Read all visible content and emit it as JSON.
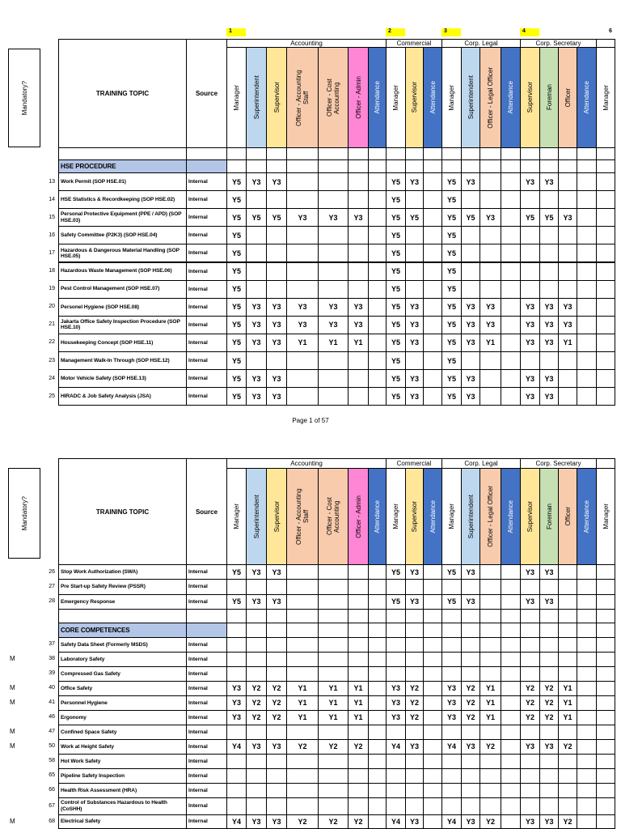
{
  "mandatory_header": "Mandatory?",
  "topic_header": "TRAINING TOPIC",
  "source_header": "Source",
  "groups": [
    {
      "number": "1",
      "name": "Accounting"
    },
    {
      "number": "2",
      "name": "Commercial"
    },
    {
      "number": "3",
      "name": "Corp. Legal"
    },
    {
      "number": "4",
      "name": "Corp. Secretary"
    },
    {
      "number": "6"
    }
  ],
  "columns": [
    "Manager",
    "Superintendent",
    "Supervisor",
    "Officer - Accounting Staff",
    "Officer - Cost Accounting",
    "Officer - Admin",
    "Attendance",
    "Manager",
    "Supervisor",
    "Attendance",
    "Manager",
    "Superintendent",
    "Officer - Legal Officer",
    "Attendance",
    "Supervisor",
    "Foreman",
    "Officer",
    "Attendance",
    "Manager"
  ],
  "pages": [
    {
      "page_label": "Page 1 of 57",
      "rows": [
        {
          "section": "HSE PROCEDURE"
        },
        {
          "no": "13",
          "topic": "Work Permit (SOP HSE.01)",
          "source": "Internal",
          "cells": [
            "Y5",
            "Y3",
            "Y3",
            null,
            null,
            null,
            null,
            "Y5",
            "Y3",
            null,
            "Y5",
            "Y3",
            null,
            null,
            "Y3",
            "Y3",
            null,
            null,
            null
          ]
        },
        {
          "no": "14",
          "topic": "HSE Statistics & Recordkeeping (SOP HSE.02)",
          "source": "Internal",
          "cells": [
            "Y5",
            null,
            null,
            null,
            null,
            null,
            null,
            "Y5",
            null,
            null,
            "Y5",
            null,
            null,
            null,
            null,
            null,
            null,
            null,
            null
          ]
        },
        {
          "no": "15",
          "topic": "Personal Protective Equipment (PPE / APD) (SOP HSE.03)",
          "source": "Internal",
          "cells": [
            "Y5",
            "Y5",
            "Y5",
            "Y3",
            "Y3",
            "Y3",
            null,
            "Y5",
            "Y5",
            null,
            "Y5",
            "Y5",
            "Y3",
            null,
            "Y5",
            "Y5",
            "Y3",
            null,
            null
          ]
        },
        {
          "no": "16",
          "topic": "Safety Committee (P2K3) (SOP HSE.04)",
          "source": "Internal",
          "cells": [
            "Y5",
            null,
            null,
            null,
            null,
            null,
            null,
            "Y5",
            null,
            null,
            "Y5",
            null,
            null,
            null,
            null,
            null,
            null,
            null,
            null
          ]
        },
        {
          "no": "17",
          "topic": "Hazardous & Dangerous Material Handling (SOP HSE.05)",
          "source": "Internal",
          "cells": [
            "Y5",
            null,
            null,
            null,
            null,
            null,
            null,
            "Y5",
            null,
            null,
            "Y5",
            null,
            null,
            null,
            null,
            null,
            null,
            null,
            null
          ]
        },
        {
          "no": "18",
          "topic": "Hazardous Waste Management (SOP HSE.06)",
          "source": "Internal",
          "cells": [
            "Y5",
            null,
            null,
            null,
            null,
            null,
            null,
            "Y5",
            null,
            null,
            "Y5",
            null,
            null,
            null,
            null,
            null,
            null,
            null,
            null
          ]
        },
        {
          "no": "19",
          "topic": "Pest Control Management (SOP HSE.07)",
          "source": "Internal",
          "cells": [
            "Y5",
            null,
            null,
            null,
            null,
            null,
            null,
            "Y5",
            null,
            null,
            "Y5",
            null,
            null,
            null,
            null,
            null,
            null,
            null,
            null
          ]
        },
        {
          "no": "20",
          "topic": "Personel Hygiene (SOP HSE.08)",
          "source": "Internal",
          "cells": [
            "Y5",
            "Y3",
            "Y3",
            "Y3",
            "Y3",
            "Y3",
            null,
            "Y5",
            "Y3",
            null,
            "Y5",
            "Y3",
            "Y3",
            null,
            "Y3",
            "Y3",
            "Y3",
            null,
            null
          ]
        },
        {
          "no": "21",
          "topic": "Jakarta Office Safety Inspection Procedure (SOP HSE.10)",
          "source": "Internal",
          "cells": [
            "Y5",
            "Y3",
            "Y3",
            "Y3",
            "Y3",
            "Y3",
            null,
            "Y5",
            "Y3",
            null,
            "Y5",
            "Y3",
            "Y3",
            null,
            "Y3",
            "Y3",
            "Y3",
            null,
            null
          ]
        },
        {
          "no": "22",
          "topic": "Housekeeping Concept (SOP HSE.11)",
          "source": "Internal",
          "cells": [
            "Y5",
            "Y3",
            "Y3",
            "Y1",
            "Y1",
            "Y1",
            null,
            "Y5",
            "Y3",
            null,
            "Y5",
            "Y3",
            "Y1",
            null,
            "Y3",
            "Y3",
            "Y1",
            null,
            null
          ]
        },
        {
          "no": "23",
          "topic": "Management Walk-In Through (SOP HSE.12)",
          "source": "Internal",
          "cells": [
            "Y5",
            null,
            null,
            null,
            null,
            null,
            null,
            "Y5",
            null,
            null,
            "Y5",
            null,
            null,
            null,
            null,
            null,
            null,
            null,
            null
          ]
        },
        {
          "no": "24",
          "topic": "Motor Vehicle Safety (SOP HSE.13)",
          "source": "Internal",
          "cells": [
            "Y5",
            "Y3",
            "Y3",
            null,
            null,
            null,
            null,
            "Y5",
            "Y3",
            null,
            "Y5",
            "Y3",
            null,
            null,
            "Y3",
            "Y3",
            null,
            null,
            null
          ]
        },
        {
          "no": "25",
          "topic": "HIRADC & Job Safety Analysis (JSA)",
          "source": "Internal",
          "cells": [
            "Y5",
            "Y3",
            "Y3",
            null,
            null,
            null,
            null,
            "Y5",
            "Y3",
            null,
            "Y5",
            "Y3",
            null,
            null,
            "Y3",
            "Y3",
            null,
            null,
            null
          ]
        }
      ]
    },
    {
      "rows": [
        {
          "no": "26",
          "topic": "Stop Work Authorization (SWA)",
          "source": "Internal",
          "cells": [
            "Y5",
            "Y3",
            "Y3",
            null,
            null,
            null,
            null,
            "Y5",
            "Y3",
            null,
            "Y5",
            "Y3",
            null,
            null,
            "Y3",
            "Y3",
            null,
            null,
            null
          ]
        },
        {
          "no": "27",
          "topic": "Pre Start-up Safety Review (PSSR)",
          "source": "Internal"
        },
        {
          "no": "28",
          "topic": "Emergency Response",
          "source": "Internal",
          "cells": [
            "Y5",
            "Y3",
            "Y3",
            null,
            null,
            null,
            null,
            "Y5",
            "Y3",
            null,
            "Y5",
            "Y3",
            null,
            null,
            "Y3",
            "Y3",
            null,
            null,
            null
          ]
        },
        {
          "section": "CORE COMPETENCES"
        },
        {
          "no": "37",
          "topic": "Safety Data Sheet (Formerly MSDS)",
          "source": "Internal"
        },
        {
          "mandatory": "M",
          "no": "38",
          "topic": "Laboratory Safety",
          "source": "Internal"
        },
        {
          "no": "39",
          "topic": "Compressed Gas Safety",
          "source": "Internal"
        },
        {
          "mandatory": "M",
          "no": "40",
          "topic": "Office Safety",
          "source": "Internal",
          "cells": [
            "Y3",
            "Y2",
            "Y2",
            "Y1",
            "Y1",
            "Y1",
            null,
            "Y3",
            "Y2",
            null,
            "Y3",
            "Y2",
            "Y1",
            null,
            "Y2",
            "Y2",
            "Y1",
            null,
            null
          ]
        },
        {
          "mandatory": "M",
          "no": "41",
          "topic": "Personnel Hygiene",
          "source": "Internal",
          "cells": [
            "Y3",
            "Y2",
            "Y2",
            "Y1",
            "Y1",
            "Y1",
            null,
            "Y3",
            "Y2",
            null,
            "Y3",
            "Y2",
            "Y1",
            null,
            "Y2",
            "Y2",
            "Y1",
            null,
            null
          ]
        },
        {
          "no": "46",
          "topic": "Ergonomy",
          "source": "Internal",
          "cells": [
            "Y3",
            "Y2",
            "Y2",
            "Y1",
            "Y1",
            "Y1",
            null,
            "Y3",
            "Y2",
            null,
            "Y3",
            "Y2",
            "Y1",
            null,
            "Y2",
            "Y2",
            "Y1",
            null,
            null
          ]
        },
        {
          "mandatory": "M",
          "no": "47",
          "topic": "Confined Space Safety",
          "source": "Internal"
        },
        {
          "mandatory": "M",
          "no": "50",
          "topic": "Work at Height Safety",
          "source": "Internal",
          "cells": [
            "Y4",
            "Y3",
            "Y3",
            "Y2",
            "Y2",
            "Y2",
            null,
            "Y4",
            "Y3",
            null,
            "Y4",
            "Y3",
            "Y2",
            null,
            "Y3",
            "Y3",
            "Y2",
            null,
            null
          ]
        },
        {
          "no": "58",
          "topic": "Hot Work Safety",
          "source": "Internal"
        },
        {
          "no": "65",
          "topic": "Pipeline Safety Inspection",
          "source": "Internal"
        },
        {
          "no": "66",
          "topic": "Health Risk Assessment (HRA)",
          "source": "Internal"
        },
        {
          "no": "67",
          "topic": "Control of Substances Hazardous to Health (CoSHH)",
          "source": "Internal"
        },
        {
          "mandatory": "M",
          "no": "68",
          "topic": "Electrical Safety",
          "source": "Internal",
          "cells": [
            "Y4",
            "Y3",
            "Y3",
            "Y2",
            "Y2",
            "Y2",
            null,
            "Y4",
            "Y3",
            null,
            "Y4",
            "Y3",
            "Y2",
            null,
            "Y3",
            "Y3",
            "Y2",
            null,
            null
          ]
        }
      ]
    }
  ]
}
